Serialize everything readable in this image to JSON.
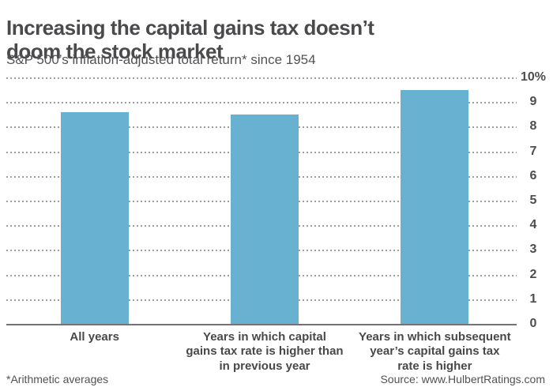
{
  "header": {
    "title": "Increasing the capital gains tax doesn’t doom the stock market",
    "title_display": "Increasing the capital gains tax doesn’t\ndoom the stock market",
    "subtitle": "S&P 500’s inflation-adjusted total return* since 1954"
  },
  "chart_data": {
    "type": "bar",
    "title": "Increasing the capital gains tax doesn’t doom the stock market",
    "subtitle": "S&P 500’s inflation-adjusted total return* since 1954",
    "categories": [
      "All years",
      "Years in which capital gains tax rate is higher than in previous year",
      "Years in which subsequent year’s capital gains tax rate is higher"
    ],
    "categories_display": [
      "All years",
      "Years in which capital\ngains tax rate is higher than\nin previous year",
      "Years in which subsequent\nyear’s capital gains tax\nrate is higher"
    ],
    "values": [
      8.6,
      8.5,
      9.5
    ],
    "unit": "%",
    "xlabel": "",
    "ylabel": "",
    "ylim": [
      0,
      10
    ],
    "yticks": [
      0,
      1,
      2,
      3,
      4,
      5,
      6,
      7,
      8,
      9,
      10
    ],
    "ytick_labels": [
      "0",
      "1",
      "2",
      "3",
      "4",
      "5",
      "6",
      "7",
      "8",
      "9",
      "10%"
    ],
    "grid": "dotted horizontal, y-axis labels on right",
    "legend": "none",
    "bar_color": "#68b1d0"
  },
  "footer": {
    "note": "*Arithmetic averages",
    "source": "Source: www.HulbertRatings.com"
  },
  "colors": {
    "title_text": "#4a4a4c",
    "body_text": "#525254",
    "axis_text": "#4d4d4f",
    "bar": "#68b1d0",
    "gridline": "#9e9e9e",
    "baseline": "#737375",
    "background": "#ffffff"
  }
}
